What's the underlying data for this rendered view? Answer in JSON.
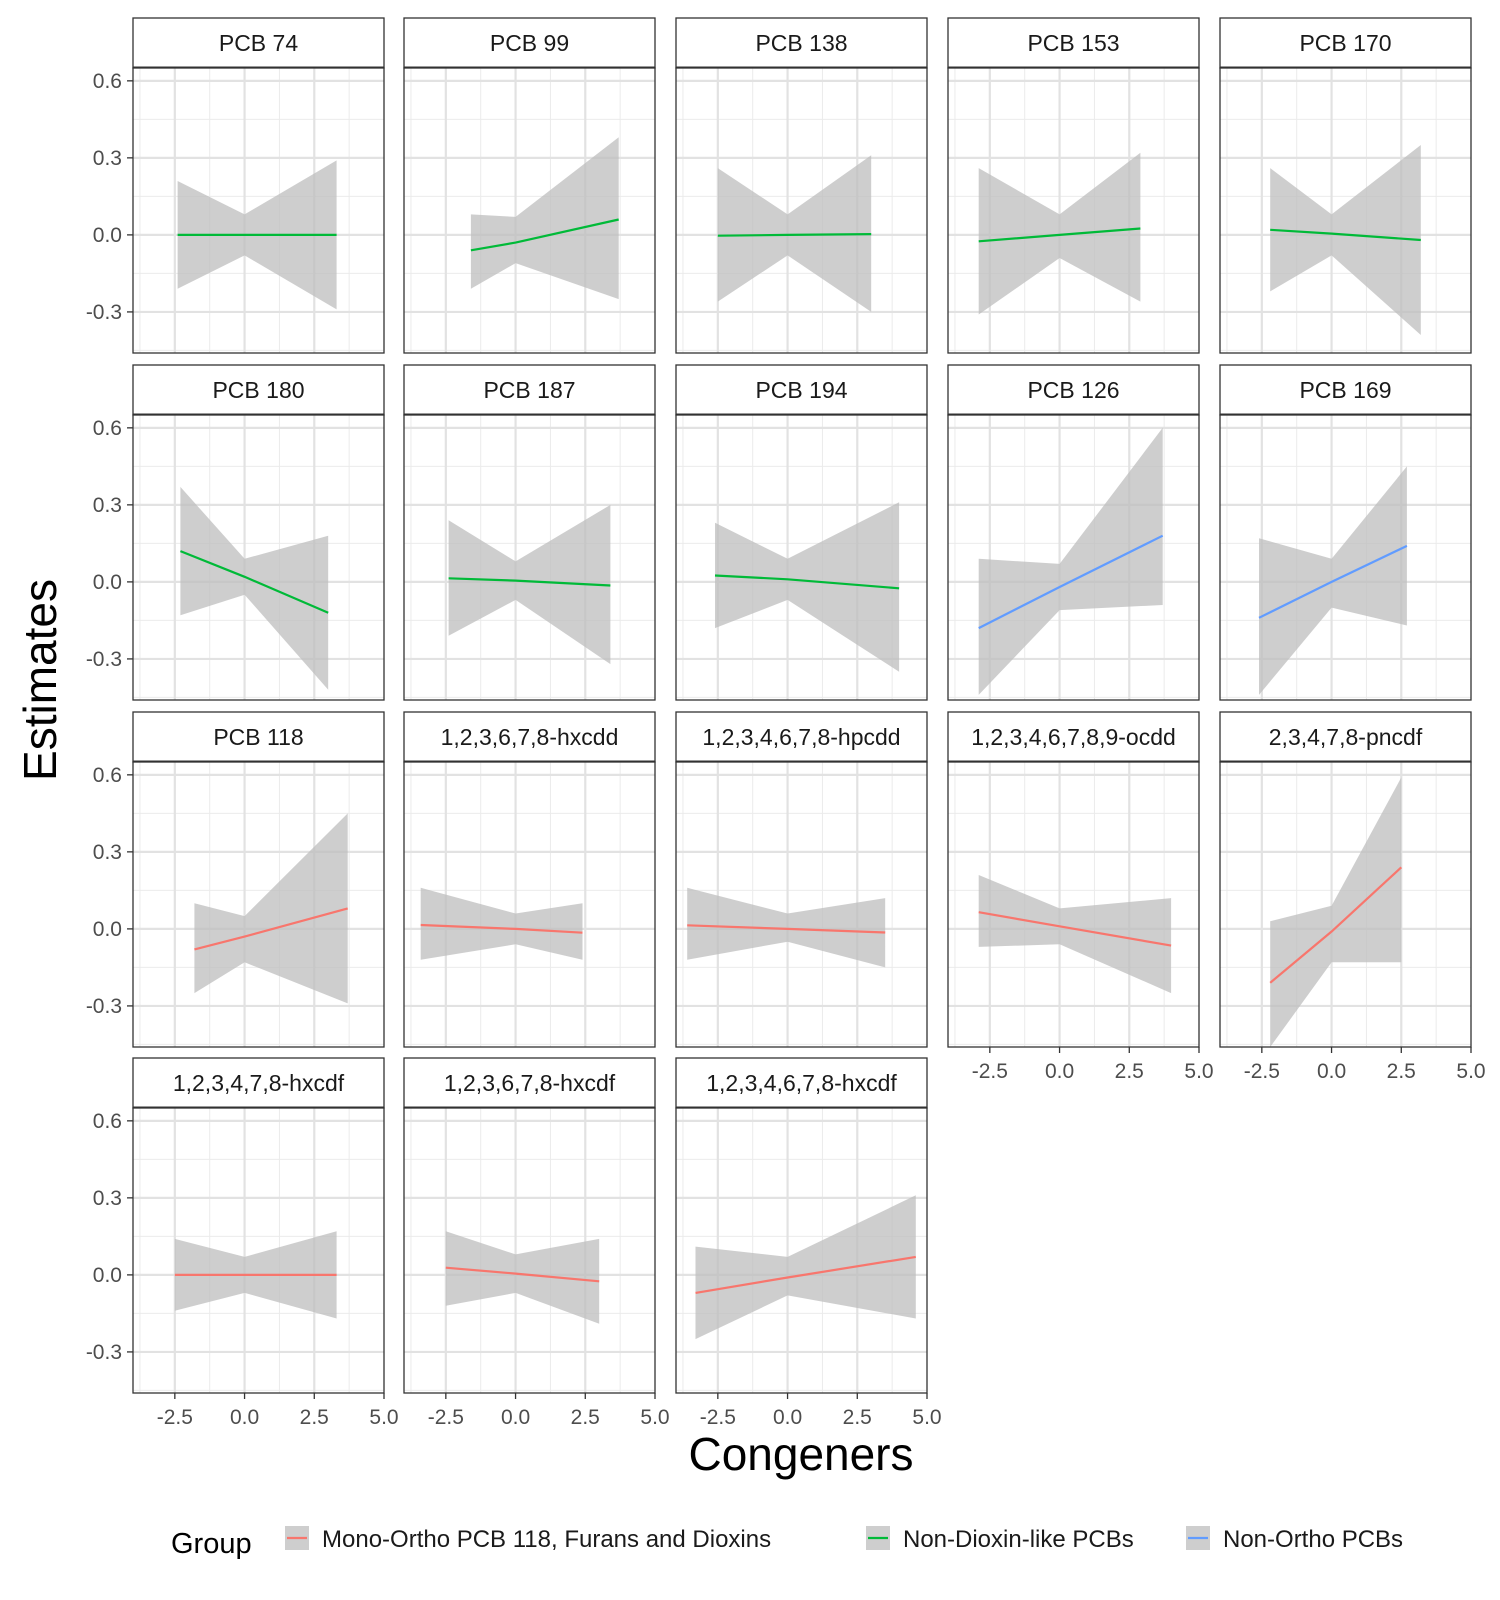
{
  "chart_data": {
    "type": "line",
    "subtype": "faceted line with confidence bands",
    "xlabel": "Congeners",
    "ylabel": "Estimates",
    "x_ticks": [
      -2.5,
      0.0,
      2.5,
      5.0
    ],
    "x_tick_labels": [
      "-2.5",
      "0.0",
      "2.5",
      "5.0"
    ],
    "xlim": [
      -4.0,
      5.0
    ],
    "y_ticks": [
      -0.3,
      0.0,
      0.3,
      0.6
    ],
    "y_tick_labels": [
      "-0.3",
      "0.0",
      "0.3",
      "0.6"
    ],
    "ylim": [
      -0.46,
      0.65
    ],
    "grid": true,
    "band_color": "#bebebe",
    "legend": {
      "title": "Group",
      "position": "bottom",
      "entries": [
        {
          "label": "Mono-Ortho PCB 118, Furans and Dioxins",
          "color": "#F8766D"
        },
        {
          "label": "Non-Dioxin-like PCBs",
          "color": "#00BA38"
        },
        {
          "label": "Non-Ortho PCBs",
          "color": "#619CFF"
        }
      ]
    },
    "panels": [
      {
        "label": "PCB 74",
        "group": 1,
        "x": [
          -2.4,
          0.0,
          3.3
        ],
        "y": [
          0.0,
          0.0,
          0.0
        ],
        "lower": [
          -0.21,
          -0.08,
          -0.29
        ],
        "upper": [
          0.21,
          0.08,
          0.29
        ]
      },
      {
        "label": "PCB 99",
        "group": 1,
        "x": [
          -1.6,
          0.0,
          3.7
        ],
        "y": [
          -0.06,
          -0.03,
          0.06
        ],
        "lower": [
          -0.21,
          -0.11,
          -0.25
        ],
        "upper": [
          0.08,
          0.07,
          0.38
        ]
      },
      {
        "label": "PCB 138",
        "group": 1,
        "x": [
          -2.5,
          0.0,
          3.0
        ],
        "y": [
          -0.003,
          0.0,
          0.003
        ],
        "lower": [
          -0.26,
          -0.08,
          -0.3
        ],
        "upper": [
          0.26,
          0.08,
          0.31
        ]
      },
      {
        "label": "PCB 153",
        "group": 1,
        "x": [
          -2.9,
          0.0,
          2.9
        ],
        "y": [
          -0.025,
          0.0,
          0.025
        ],
        "lower": [
          -0.31,
          -0.09,
          -0.26
        ],
        "upper": [
          0.26,
          0.08,
          0.32
        ]
      },
      {
        "label": "PCB 170",
        "group": 1,
        "x": [
          -2.2,
          0.0,
          3.2
        ],
        "y": [
          0.02,
          0.005,
          -0.02
        ],
        "lower": [
          -0.22,
          -0.08,
          -0.39
        ],
        "upper": [
          0.26,
          0.08,
          0.35
        ]
      },
      {
        "label": "PCB 180",
        "group": 1,
        "x": [
          -2.3,
          0.0,
          3.0
        ],
        "y": [
          0.12,
          0.02,
          -0.12
        ],
        "lower": [
          -0.13,
          -0.05,
          -0.42
        ],
        "upper": [
          0.37,
          0.09,
          0.18
        ]
      },
      {
        "label": "PCB 187",
        "group": 1,
        "x": [
          -2.4,
          0.0,
          3.4
        ],
        "y": [
          0.014,
          0.005,
          -0.014
        ],
        "lower": [
          -0.21,
          -0.07,
          -0.32
        ],
        "upper": [
          0.24,
          0.08,
          0.3
        ]
      },
      {
        "label": "PCB 194",
        "group": 1,
        "x": [
          -2.6,
          0.0,
          4.0
        ],
        "y": [
          0.025,
          0.01,
          -0.025
        ],
        "lower": [
          -0.18,
          -0.07,
          -0.35
        ],
        "upper": [
          0.23,
          0.09,
          0.31
        ]
      },
      {
        "label": "PCB 126",
        "group": 2,
        "x": [
          -2.9,
          0.0,
          3.7
        ],
        "y": [
          -0.18,
          -0.02,
          0.18
        ],
        "lower": [
          -0.44,
          -0.11,
          -0.09
        ],
        "upper": [
          0.09,
          0.07,
          0.6
        ]
      },
      {
        "label": "PCB 169",
        "group": 2,
        "x": [
          -2.6,
          0.0,
          2.7
        ],
        "y": [
          -0.14,
          0.0,
          0.14
        ],
        "lower": [
          -0.44,
          -0.1,
          -0.17
        ],
        "upper": [
          0.17,
          0.09,
          0.45
        ]
      },
      {
        "label": "PCB 118",
        "group": 0,
        "x": [
          -1.8,
          0.0,
          3.7
        ],
        "y": [
          -0.08,
          -0.03,
          0.08
        ],
        "lower": [
          -0.25,
          -0.13,
          -0.29
        ],
        "upper": [
          0.1,
          0.05,
          0.45
        ]
      },
      {
        "label": "1,2,3,6,7,8-hxcdd",
        "group": 0,
        "x": [
          -3.4,
          0.0,
          2.4
        ],
        "y": [
          0.015,
          0.0,
          -0.015
        ],
        "lower": [
          -0.12,
          -0.06,
          -0.12
        ],
        "upper": [
          0.16,
          0.06,
          0.1
        ]
      },
      {
        "label": "1,2,3,4,6,7,8-hpcdd",
        "group": 0,
        "x": [
          -3.6,
          0.0,
          3.5
        ],
        "y": [
          0.014,
          0.0,
          -0.014
        ],
        "lower": [
          -0.12,
          -0.05,
          -0.15
        ],
        "upper": [
          0.16,
          0.06,
          0.12
        ]
      },
      {
        "label": "1,2,3,4,6,7,8,9-ocdd",
        "group": 0,
        "x": [
          -2.9,
          0.0,
          4.0
        ],
        "y": [
          0.065,
          0.01,
          -0.065
        ],
        "lower": [
          -0.07,
          -0.06,
          -0.25
        ],
        "upper": [
          0.21,
          0.08,
          0.12
        ]
      },
      {
        "label": "2,3,4,7,8-pncdf",
        "group": 0,
        "x": [
          -2.2,
          0.0,
          2.5
        ],
        "y": [
          -0.21,
          -0.01,
          0.24
        ],
        "lower": [
          -0.46,
          -0.13,
          -0.13
        ],
        "upper": [
          0.03,
          0.09,
          0.59
        ]
      },
      {
        "label": "1,2,3,4,7,8-hxcdf",
        "group": 0,
        "x": [
          -2.5,
          0.0,
          3.3
        ],
        "y": [
          0.0,
          0.0,
          0.0
        ],
        "lower": [
          -0.14,
          -0.07,
          -0.17
        ],
        "upper": [
          0.14,
          0.07,
          0.17
        ]
      },
      {
        "label": "1,2,3,6,7,8-hxcdf",
        "group": 0,
        "x": [
          -2.5,
          0.0,
          3.0
        ],
        "y": [
          0.028,
          0.005,
          -0.025
        ],
        "lower": [
          -0.12,
          -0.07,
          -0.19
        ],
        "upper": [
          0.17,
          0.08,
          0.14
        ]
      },
      {
        "label": "1,2,3,4,6,7,8-hxcdf",
        "group": 0,
        "x": [
          -3.3,
          0.0,
          4.6
        ],
        "y": [
          -0.07,
          -0.01,
          0.07
        ],
        "lower": [
          -0.25,
          -0.08,
          -0.17
        ],
        "upper": [
          0.11,
          0.07,
          0.31
        ]
      }
    ]
  }
}
